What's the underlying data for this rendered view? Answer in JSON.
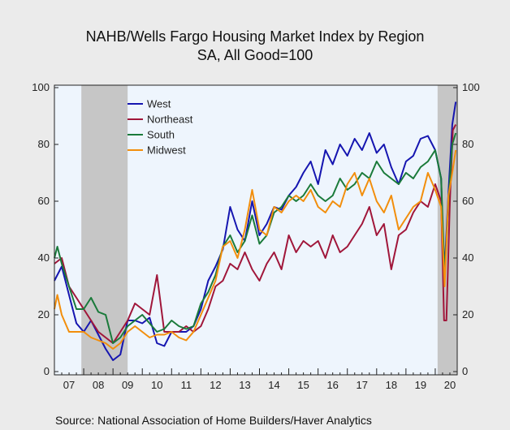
{
  "chart_data": {
    "type": "line",
    "title": "NAHB/Wells Fargo Housing Market Index by Region",
    "subtitle": "SA, All Good=100",
    "source": "Source:  National Association of Home Builders/Haver Analytics",
    "xlabel": "",
    "ylabel": "",
    "ylim": [
      0,
      100
    ],
    "y_ticks": [
      "0",
      "20",
      "40",
      "60",
      "80",
      "100"
    ],
    "x_range": [
      2007.0,
      2020.75
    ],
    "x_tick_labels": [
      "07",
      "08",
      "09",
      "10",
      "11",
      "12",
      "13",
      "14",
      "15",
      "16",
      "17",
      "18",
      "19",
      "20"
    ],
    "grid": false,
    "legend_position": "top-left",
    "recessions": [
      [
        2007.92,
        2009.5
      ],
      [
        2020.08,
        2020.75
      ]
    ],
    "colors": {
      "plot_background": "#eef5fd",
      "recession_shade": "#c6c6c6",
      "West": "#1515b0",
      "Northeast": "#a0163a",
      "South": "#1a7a3a",
      "Midwest": "#f28e0c"
    },
    "series": [
      {
        "name": "West",
        "points": [
          [
            2007.0,
            32
          ],
          [
            2007.25,
            37
          ],
          [
            2007.5,
            27
          ],
          [
            2007.75,
            17
          ],
          [
            2008.0,
            14
          ],
          [
            2008.25,
            18
          ],
          [
            2008.5,
            13
          ],
          [
            2008.75,
            8
          ],
          [
            2009.0,
            4
          ],
          [
            2009.25,
            6
          ],
          [
            2009.5,
            18
          ],
          [
            2009.75,
            18
          ],
          [
            2010.0,
            17
          ],
          [
            2010.25,
            19
          ],
          [
            2010.5,
            10
          ],
          [
            2010.75,
            9
          ],
          [
            2011.0,
            14
          ],
          [
            2011.25,
            14
          ],
          [
            2011.5,
            14
          ],
          [
            2011.75,
            16
          ],
          [
            2012.0,
            22
          ],
          [
            2012.25,
            32
          ],
          [
            2012.5,
            37
          ],
          [
            2012.75,
            43
          ],
          [
            2013.0,
            58
          ],
          [
            2013.25,
            50
          ],
          [
            2013.5,
            46
          ],
          [
            2013.75,
            60
          ],
          [
            2014.0,
            48
          ],
          [
            2014.25,
            52
          ],
          [
            2014.5,
            58
          ],
          [
            2014.75,
            57
          ],
          [
            2015.0,
            62
          ],
          [
            2015.25,
            65
          ],
          [
            2015.5,
            70
          ],
          [
            2015.75,
            74
          ],
          [
            2016.0,
            66
          ],
          [
            2016.25,
            78
          ],
          [
            2016.5,
            73
          ],
          [
            2016.75,
            80
          ],
          [
            2017.0,
            76
          ],
          [
            2017.25,
            82
          ],
          [
            2017.5,
            78
          ],
          [
            2017.75,
            84
          ],
          [
            2018.0,
            77
          ],
          [
            2018.25,
            80
          ],
          [
            2018.5,
            72
          ],
          [
            2018.75,
            66
          ],
          [
            2019.0,
            74
          ],
          [
            2019.25,
            76
          ],
          [
            2019.5,
            82
          ],
          [
            2019.75,
            83
          ],
          [
            2020.0,
            78
          ],
          [
            2020.2,
            68
          ],
          [
            2020.3,
            32
          ],
          [
            2020.45,
            63
          ],
          [
            2020.58,
            87
          ],
          [
            2020.7,
            95
          ]
        ]
      },
      {
        "name": "Northeast",
        "points": [
          [
            2007.0,
            38
          ],
          [
            2007.25,
            40
          ],
          [
            2007.5,
            30
          ],
          [
            2007.75,
            26
          ],
          [
            2008.0,
            22
          ],
          [
            2008.25,
            18
          ],
          [
            2008.5,
            14
          ],
          [
            2008.75,
            12
          ],
          [
            2009.0,
            10
          ],
          [
            2009.25,
            14
          ],
          [
            2009.5,
            18
          ],
          [
            2009.75,
            24
          ],
          [
            2010.0,
            22
          ],
          [
            2010.25,
            20
          ],
          [
            2010.5,
            34
          ],
          [
            2010.75,
            14
          ],
          [
            2011.0,
            14
          ],
          [
            2011.25,
            14
          ],
          [
            2011.5,
            16
          ],
          [
            2011.75,
            14
          ],
          [
            2012.0,
            16
          ],
          [
            2012.25,
            22
          ],
          [
            2012.5,
            30
          ],
          [
            2012.75,
            32
          ],
          [
            2013.0,
            38
          ],
          [
            2013.25,
            36
          ],
          [
            2013.5,
            42
          ],
          [
            2013.75,
            36
          ],
          [
            2014.0,
            32
          ],
          [
            2014.25,
            38
          ],
          [
            2014.5,
            42
          ],
          [
            2014.75,
            36
          ],
          [
            2015.0,
            48
          ],
          [
            2015.25,
            42
          ],
          [
            2015.5,
            46
          ],
          [
            2015.75,
            44
          ],
          [
            2016.0,
            46
          ],
          [
            2016.25,
            40
          ],
          [
            2016.5,
            48
          ],
          [
            2016.75,
            42
          ],
          [
            2017.0,
            44
          ],
          [
            2017.25,
            48
          ],
          [
            2017.5,
            52
          ],
          [
            2017.75,
            58
          ],
          [
            2018.0,
            48
          ],
          [
            2018.25,
            52
          ],
          [
            2018.5,
            36
          ],
          [
            2018.75,
            48
          ],
          [
            2019.0,
            50
          ],
          [
            2019.25,
            56
          ],
          [
            2019.5,
            60
          ],
          [
            2019.75,
            58
          ],
          [
            2020.0,
            66
          ],
          [
            2020.2,
            60
          ],
          [
            2020.3,
            18
          ],
          [
            2020.38,
            18
          ],
          [
            2020.5,
            60
          ],
          [
            2020.6,
            85
          ],
          [
            2020.7,
            87
          ]
        ]
      },
      {
        "name": "South",
        "points": [
          [
            2007.0,
            40
          ],
          [
            2007.1,
            44
          ],
          [
            2007.25,
            38
          ],
          [
            2007.5,
            30
          ],
          [
            2007.75,
            22
          ],
          [
            2008.0,
            22
          ],
          [
            2008.25,
            26
          ],
          [
            2008.5,
            21
          ],
          [
            2008.75,
            20
          ],
          [
            2009.0,
            10
          ],
          [
            2009.25,
            12
          ],
          [
            2009.5,
            16
          ],
          [
            2009.75,
            18
          ],
          [
            2010.0,
            20
          ],
          [
            2010.25,
            17
          ],
          [
            2010.5,
            14
          ],
          [
            2010.75,
            15
          ],
          [
            2011.0,
            18
          ],
          [
            2011.25,
            16
          ],
          [
            2011.5,
            15
          ],
          [
            2011.75,
            16
          ],
          [
            2012.0,
            24
          ],
          [
            2012.25,
            28
          ],
          [
            2012.5,
            34
          ],
          [
            2012.75,
            44
          ],
          [
            2013.0,
            48
          ],
          [
            2013.25,
            42
          ],
          [
            2013.5,
            46
          ],
          [
            2013.75,
            55
          ],
          [
            2014.0,
            45
          ],
          [
            2014.25,
            48
          ],
          [
            2014.5,
            56
          ],
          [
            2014.75,
            58
          ],
          [
            2015.0,
            62
          ],
          [
            2015.25,
            60
          ],
          [
            2015.5,
            62
          ],
          [
            2015.75,
            66
          ],
          [
            2016.0,
            62
          ],
          [
            2016.25,
            60
          ],
          [
            2016.5,
            62
          ],
          [
            2016.75,
            68
          ],
          [
            2017.0,
            64
          ],
          [
            2017.25,
            66
          ],
          [
            2017.5,
            70
          ],
          [
            2017.75,
            68
          ],
          [
            2018.0,
            74
          ],
          [
            2018.25,
            70
          ],
          [
            2018.5,
            68
          ],
          [
            2018.75,
            66
          ],
          [
            2019.0,
            70
          ],
          [
            2019.25,
            68
          ],
          [
            2019.5,
            72
          ],
          [
            2019.75,
            74
          ],
          [
            2020.0,
            78
          ],
          [
            2020.2,
            68
          ],
          [
            2020.32,
            34
          ],
          [
            2020.45,
            60
          ],
          [
            2020.58,
            80
          ],
          [
            2020.7,
            84
          ]
        ]
      },
      {
        "name": "Midwest",
        "points": [
          [
            2007.0,
            22
          ],
          [
            2007.1,
            27
          ],
          [
            2007.25,
            20
          ],
          [
            2007.5,
            14
          ],
          [
            2007.75,
            14
          ],
          [
            2008.0,
            14
          ],
          [
            2008.25,
            12
          ],
          [
            2008.5,
            11
          ],
          [
            2008.75,
            10
          ],
          [
            2009.0,
            8
          ],
          [
            2009.25,
            10
          ],
          [
            2009.5,
            14
          ],
          [
            2009.75,
            16
          ],
          [
            2010.0,
            14
          ],
          [
            2010.25,
            12
          ],
          [
            2010.5,
            13
          ],
          [
            2010.75,
            13
          ],
          [
            2011.0,
            14
          ],
          [
            2011.25,
            12
          ],
          [
            2011.5,
            11
          ],
          [
            2011.75,
            14
          ],
          [
            2012.0,
            20
          ],
          [
            2012.25,
            26
          ],
          [
            2012.5,
            32
          ],
          [
            2012.75,
            44
          ],
          [
            2013.0,
            46
          ],
          [
            2013.25,
            40
          ],
          [
            2013.5,
            50
          ],
          [
            2013.75,
            64
          ],
          [
            2014.0,
            50
          ],
          [
            2014.25,
            48
          ],
          [
            2014.5,
            58
          ],
          [
            2014.75,
            56
          ],
          [
            2015.0,
            60
          ],
          [
            2015.25,
            62
          ],
          [
            2015.5,
            60
          ],
          [
            2015.75,
            64
          ],
          [
            2016.0,
            58
          ],
          [
            2016.25,
            56
          ],
          [
            2016.5,
            60
          ],
          [
            2016.75,
            58
          ],
          [
            2017.0,
            66
          ],
          [
            2017.25,
            70
          ],
          [
            2017.5,
            62
          ],
          [
            2017.75,
            68
          ],
          [
            2018.0,
            60
          ],
          [
            2018.25,
            56
          ],
          [
            2018.5,
            62
          ],
          [
            2018.75,
            50
          ],
          [
            2019.0,
            54
          ],
          [
            2019.25,
            58
          ],
          [
            2019.5,
            60
          ],
          [
            2019.75,
            70
          ],
          [
            2020.0,
            64
          ],
          [
            2020.2,
            58
          ],
          [
            2020.32,
            30
          ],
          [
            2020.45,
            62
          ],
          [
            2020.58,
            70
          ],
          [
            2020.7,
            78
          ]
        ]
      }
    ]
  }
}
